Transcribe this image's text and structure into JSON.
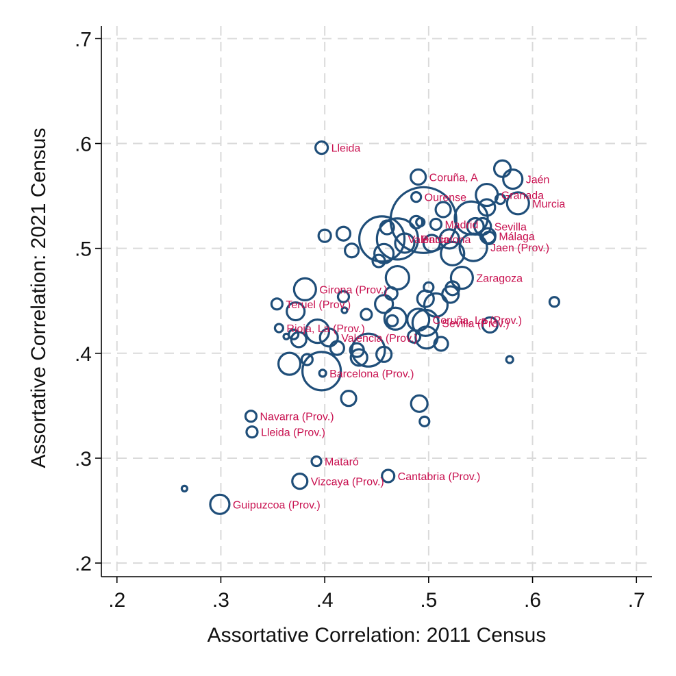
{
  "chart_data": {
    "type": "scatter",
    "title": "",
    "xlabel": "Assortative Correlation: 2011 Census",
    "ylabel": "Assortative Correlation: 2021 Census",
    "xlim": [
      0.185,
      0.715
    ],
    "ylim": [
      0.187,
      0.712
    ],
    "xticks": [
      {
        "v": 0.2,
        "label": ".2"
      },
      {
        "v": 0.3,
        "label": ".3"
      },
      {
        "v": 0.4,
        "label": ".4"
      },
      {
        "v": 0.5,
        "label": ".5"
      },
      {
        "v": 0.6,
        "label": ".6"
      },
      {
        "v": 0.7,
        "label": ".7"
      }
    ],
    "yticks": [
      {
        "v": 0.2,
        "label": ".2"
      },
      {
        "v": 0.3,
        "label": ".3"
      },
      {
        "v": 0.4,
        "label": ".4"
      },
      {
        "v": 0.5,
        "label": ".5"
      },
      {
        "v": 0.6,
        "label": ".6"
      },
      {
        "v": 0.7,
        "label": ".7"
      }
    ],
    "grid": true,
    "marker_color": "#1f4e79",
    "label_color": "#c8104f",
    "points": [
      {
        "x": 0.397,
        "y": 0.596,
        "r": 9,
        "label": "Lleida"
      },
      {
        "x": 0.49,
        "y": 0.568,
        "r": 11,
        "label": "Coruña, A"
      },
      {
        "x": 0.571,
        "y": 0.576,
        "r": 12
      },
      {
        "x": 0.581,
        "y": 0.566,
        "r": 14,
        "label": "Jaén"
      },
      {
        "x": 0.556,
        "y": 0.551,
        "r": 16,
        "label": "Granada"
      },
      {
        "x": 0.586,
        "y": 0.543,
        "r": 16,
        "label": "Murcia"
      },
      {
        "x": 0.488,
        "y": 0.549,
        "r": 7,
        "label": "Ourense"
      },
      {
        "x": 0.495,
        "y": 0.527,
        "r": 48
      },
      {
        "x": 0.514,
        "y": 0.537,
        "r": 11
      },
      {
        "x": 0.541,
        "y": 0.529,
        "r": 24
      },
      {
        "x": 0.556,
        "y": 0.539,
        "r": 12
      },
      {
        "x": 0.569,
        "y": 0.547,
        "r": 7
      },
      {
        "x": 0.545,
        "y": 0.521,
        "r": 12
      },
      {
        "x": 0.552,
        "y": 0.521,
        "r": 12,
        "label": "Sevilla"
      },
      {
        "x": 0.557,
        "y": 0.512,
        "r": 11,
        "label": "Málaga"
      },
      {
        "x": 0.507,
        "y": 0.523,
        "r": 8,
        "label": "Madrid"
      },
      {
        "x": 0.52,
        "y": 0.509,
        "r": 14
      },
      {
        "x": 0.488,
        "y": 0.525,
        "r": 9
      },
      {
        "x": 0.492,
        "y": 0.525,
        "r": 6
      },
      {
        "x": 0.455,
        "y": 0.509,
        "r": 33,
        "label": "Valencia"
      },
      {
        "x": 0.47,
        "y": 0.509,
        "r": 30,
        "label": "Barcelona"
      },
      {
        "x": 0.46,
        "y": 0.52,
        "r": 10
      },
      {
        "x": 0.477,
        "y": 0.505,
        "r": 14
      },
      {
        "x": 0.503,
        "y": 0.505,
        "r": 12
      },
      {
        "x": 0.523,
        "y": 0.495,
        "r": 17
      },
      {
        "x": 0.543,
        "y": 0.501,
        "r": 20,
        "label": "Jaen (Prov.)"
      },
      {
        "x": 0.558,
        "y": 0.51,
        "r": 9
      },
      {
        "x": 0.4,
        "y": 0.512,
        "r": 9
      },
      {
        "x": 0.418,
        "y": 0.514,
        "r": 10
      },
      {
        "x": 0.426,
        "y": 0.498,
        "r": 10
      },
      {
        "x": 0.452,
        "y": 0.488,
        "r": 9
      },
      {
        "x": 0.457,
        "y": 0.495,
        "r": 14
      },
      {
        "x": 0.47,
        "y": 0.472,
        "r": 17
      },
      {
        "x": 0.532,
        "y": 0.472,
        "r": 16,
        "label": "Zaragoza"
      },
      {
        "x": 0.381,
        "y": 0.461,
        "r": 16,
        "label": "Girona (Prov.)"
      },
      {
        "x": 0.354,
        "y": 0.447,
        "r": 8,
        "label": "Teruel (Prov.)"
      },
      {
        "x": 0.372,
        "y": 0.44,
        "r": 13
      },
      {
        "x": 0.418,
        "y": 0.454,
        "r": 8
      },
      {
        "x": 0.419,
        "y": 0.441,
        "r": 4
      },
      {
        "x": 0.44,
        "y": 0.437,
        "r": 8
      },
      {
        "x": 0.457,
        "y": 0.447,
        "r": 13
      },
      {
        "x": 0.464,
        "y": 0.457,
        "r": 9
      },
      {
        "x": 0.468,
        "y": 0.433,
        "r": 16
      },
      {
        "x": 0.465,
        "y": 0.431,
        "r": 8
      },
      {
        "x": 0.497,
        "y": 0.452,
        "r": 12
      },
      {
        "x": 0.5,
        "y": 0.463,
        "r": 7
      },
      {
        "x": 0.507,
        "y": 0.446,
        "r": 17
      },
      {
        "x": 0.521,
        "y": 0.456,
        "r": 12
      },
      {
        "x": 0.523,
        "y": 0.462,
        "r": 10
      },
      {
        "x": 0.621,
        "y": 0.449,
        "r": 7
      },
      {
        "x": 0.49,
        "y": 0.432,
        "r": 16,
        "label": "Coruña, La (Prov.)"
      },
      {
        "x": 0.497,
        "y": 0.429,
        "r": 19,
        "label": "Sevilla (Prov.)"
      },
      {
        "x": 0.559,
        "y": 0.427,
        "r": 11
      },
      {
        "x": 0.486,
        "y": 0.416,
        "r": 9
      },
      {
        "x": 0.498,
        "y": 0.415,
        "r": 16
      },
      {
        "x": 0.512,
        "y": 0.409,
        "r": 10
      },
      {
        "x": 0.356,
        "y": 0.424,
        "r": 6,
        "label": "Rioja, La (Prov.)"
      },
      {
        "x": 0.363,
        "y": 0.416,
        "r": 4
      },
      {
        "x": 0.37,
        "y": 0.418,
        "r": 7
      },
      {
        "x": 0.375,
        "y": 0.413,
        "r": 11
      },
      {
        "x": 0.393,
        "y": 0.421,
        "r": 17
      },
      {
        "x": 0.404,
        "y": 0.415,
        "r": 13,
        "label": "Valencia (Prov.)"
      },
      {
        "x": 0.412,
        "y": 0.405,
        "r": 10
      },
      {
        "x": 0.431,
        "y": 0.403,
        "r": 10
      },
      {
        "x": 0.433,
        "y": 0.396,
        "r": 12
      },
      {
        "x": 0.442,
        "y": 0.403,
        "r": 24
      },
      {
        "x": 0.457,
        "y": 0.399,
        "r": 11
      },
      {
        "x": 0.578,
        "y": 0.394,
        "r": 5
      },
      {
        "x": 0.366,
        "y": 0.39,
        "r": 16
      },
      {
        "x": 0.383,
        "y": 0.394,
        "r": 8
      },
      {
        "x": 0.397,
        "y": 0.383,
        "r": 28
      },
      {
        "x": 0.398,
        "y": 0.381,
        "r": 5,
        "label": "Barcelona (Prov.)"
      },
      {
        "x": 0.423,
        "y": 0.357,
        "r": 11
      },
      {
        "x": 0.491,
        "y": 0.352,
        "r": 12
      },
      {
        "x": 0.496,
        "y": 0.335,
        "r": 7
      },
      {
        "x": 0.329,
        "y": 0.34,
        "r": 8,
        "label": "Navarra (Prov.)"
      },
      {
        "x": 0.33,
        "y": 0.325,
        "r": 8,
        "label": "Lleida (Prov.)"
      },
      {
        "x": 0.392,
        "y": 0.297,
        "r": 7,
        "label": "Mataró"
      },
      {
        "x": 0.461,
        "y": 0.283,
        "r": 9,
        "label": "Cantabria (Prov.)"
      },
      {
        "x": 0.376,
        "y": 0.278,
        "r": 11,
        "label": "Vizcaya (Prov.)"
      },
      {
        "x": 0.265,
        "y": 0.271,
        "r": 4
      },
      {
        "x": 0.299,
        "y": 0.256,
        "r": 14,
        "label": "Guipuzcoa (Prov.)"
      }
    ]
  }
}
